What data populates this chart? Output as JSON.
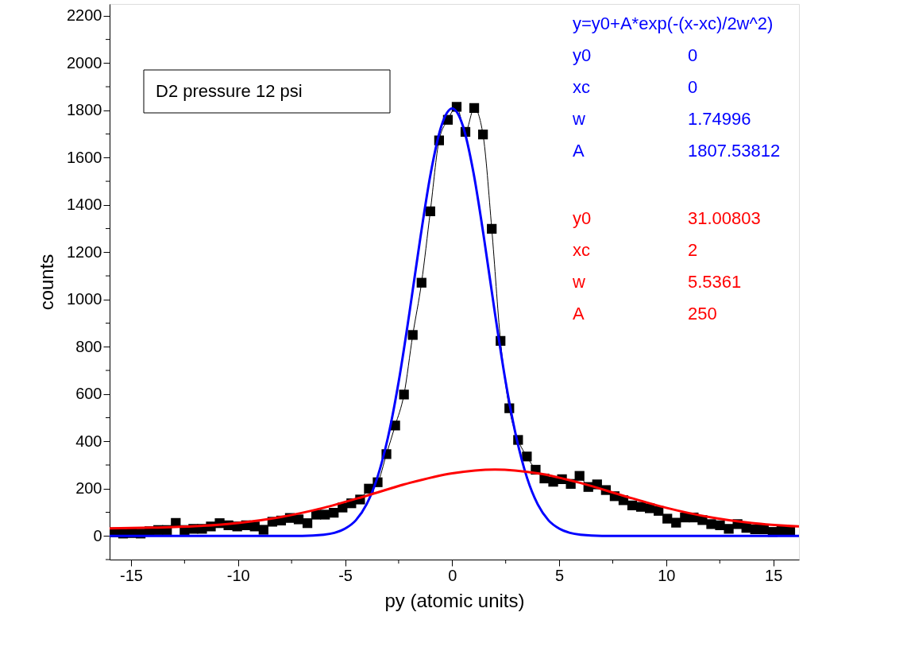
{
  "chart_data": {
    "type": "line",
    "title": "D2 pressure 12 psi",
    "xlabel": "py  (atomic units)",
    "ylabel": "counts",
    "xlim": [
      -16,
      16.2
    ],
    "ylim": [
      -100,
      2250
    ],
    "xticks": [
      -15,
      {
        "value": -12.5,
        "label": null
      },
      -10,
      {
        "value": -7.5,
        "label": null
      },
      -5,
      {
        "value": -2.5,
        "label": null
      },
      0,
      {
        "value": 2.5,
        "label": null
      },
      5,
      {
        "value": 7.5,
        "label": null
      },
      10,
      {
        "value": 12.5,
        "label": null
      },
      15
    ],
    "yticks": [
      {
        "value": -100,
        "label": null
      },
      0,
      {
        "value": 100,
        "label": null
      },
      200,
      {
        "value": 300,
        "label": null
      },
      400,
      {
        "value": 500,
        "label": null
      },
      600,
      {
        "value": 700,
        "label": null
      },
      800,
      {
        "value": 900,
        "label": null
      },
      1000,
      {
        "value": 1100,
        "label": null
      },
      1200,
      {
        "value": 1300,
        "label": null
      },
      1400,
      {
        "value": 1500,
        "label": null
      },
      1600,
      {
        "value": 1700,
        "label": null
      },
      1800,
      {
        "value": 1900,
        "label": null
      },
      2000,
      {
        "value": 2100,
        "label": null
      },
      2200
    ],
    "grid": false,
    "annotations": [
      "y=y0+A*exp(-(x-xc)/2w^2)",
      "y0",
      "0",
      "xc",
      "0",
      "w",
      "1.74996",
      "A",
      "1807.53812",
      "y0",
      "31.00803",
      "xc",
      "2",
      "w",
      "5.5361",
      "A",
      "250"
    ],
    "series": [
      {
        "color": "#000000",
        "marker": "square",
        "line_style": "solid",
        "x": [
          -15.78,
          -15.37,
          -14.96,
          -14.55,
          -14.14,
          -13.73,
          -13.32,
          -12.91,
          -12.5,
          -12.09,
          -11.68,
          -11.27,
          -10.86,
          -10.45,
          -10.04,
          -9.63,
          -9.22,
          -8.81,
          -8.4,
          -7.99,
          -7.58,
          -7.17,
          -6.76,
          -6.35,
          -5.94,
          -5.53,
          -5.12,
          -4.71,
          -4.3,
          -3.89,
          -3.48,
          -3.07,
          -2.66,
          -2.25,
          -1.84,
          -1.43,
          -1.02,
          -0.61,
          -0.2,
          0.21,
          0.62,
          1.03,
          1.44,
          1.85,
          2.26,
          2.67,
          3.08,
          3.49,
          3.9,
          4.31,
          4.72,
          5.13,
          5.54,
          5.95,
          6.36,
          6.77,
          7.18,
          7.59,
          8.0,
          8.41,
          8.82,
          9.23,
          9.64,
          10.05,
          10.46,
          10.87,
          11.28,
          11.69,
          12.1,
          12.51,
          12.92,
          13.33,
          13.74,
          14.15,
          14.56,
          14.97,
          15.38,
          15.79
        ],
        "values": [
          15,
          10,
          12,
          10,
          20,
          25,
          25,
          55,
          25,
          30,
          30,
          40,
          54,
          45,
          40,
          45,
          40,
          26,
          60,
          65,
          76,
          70,
          54,
          90,
          90,
          98,
          120,
          138,
          154,
          200,
          227,
          346,
          467,
          598,
          850,
          1071,
          1373,
          1673,
          1760,
          1815,
          1709,
          1810,
          1698,
          1299,
          825,
          540,
          406,
          336,
          280,
          243,
          229,
          240,
          220,
          254,
          207,
          218,
          194,
          168,
          151,
          129,
          123,
          117,
          106,
          73,
          56,
          78,
          78,
          67,
          50,
          45,
          30,
          50,
          34,
          28,
          28,
          17,
          22,
          22
        ]
      },
      {
        "color": "#0000ff",
        "marker": "none",
        "line_style": "solid",
        "x": [
          -16,
          -12,
          -8,
          -7,
          -6,
          -5.5,
          -5,
          -4.5,
          -4,
          -3.5,
          -3,
          -2.5,
          -2,
          -1.5,
          -1,
          -0.5,
          0,
          0.5,
          1,
          1.5,
          2,
          2.5,
          3,
          3.5,
          4,
          4.5,
          5,
          5.5,
          6,
          7,
          8,
          12,
          16.2
        ],
        "values": [
          0,
          0,
          0,
          0,
          5,
          13,
          31,
          66,
          133,
          245,
          416,
          651,
          941,
          1252,
          1535,
          1735,
          1808,
          1735,
          1535,
          1252,
          941,
          651,
          416,
          245,
          133,
          66,
          31,
          13,
          5,
          0,
          0,
          0,
          0
        ]
      },
      {
        "color": "#ff0000",
        "marker": "none",
        "line_style": "solid",
        "x": [
          -16,
          -14,
          -12,
          -10,
          -8,
          -6,
          -4,
          -2,
          0,
          2,
          4,
          6,
          8,
          10,
          12,
          14,
          16.2
        ],
        "values": [
          32,
          35,
          41,
          55,
          80,
          119,
          170,
          224,
          265,
          281,
          265,
          224,
          170,
          119,
          80,
          55,
          40
        ]
      }
    ]
  }
}
